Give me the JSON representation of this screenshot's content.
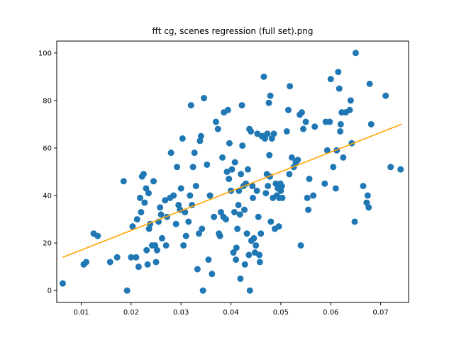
{
  "chart_data": {
    "type": "scatter",
    "title": "fft cg, scenes regression (full set).png",
    "xlabel": "",
    "ylabel": "",
    "xlim": [
      0.0051,
      0.0756
    ],
    "ylim": [
      -5,
      105
    ],
    "xticks": [
      0.01,
      0.02,
      0.03,
      0.04,
      0.05,
      0.06,
      0.07
    ],
    "xtick_labels": [
      "0.01",
      "0.02",
      "0.03",
      "0.04",
      "0.05",
      "0.06",
      "0.07"
    ],
    "yticks": [
      0,
      20,
      40,
      60,
      80,
      100
    ],
    "ytick_labels": [
      "0",
      "20",
      "40",
      "60",
      "80",
      "100"
    ],
    "grid": false,
    "point_color": "#1f77b4",
    "line_color": "#ffa500",
    "regression_line": {
      "x": [
        0.0063,
        0.0742
      ],
      "y": [
        14,
        70
      ]
    },
    "points": [
      [
        0.0063,
        3
      ],
      [
        0.0105,
        11
      ],
      [
        0.011,
        12
      ],
      [
        0.0125,
        24
      ],
      [
        0.0133,
        23
      ],
      [
        0.0158,
        12
      ],
      [
        0.0172,
        14
      ],
      [
        0.0185,
        46
      ],
      [
        0.0192,
        0
      ],
      [
        0.02,
        14
      ],
      [
        0.0203,
        27
      ],
      [
        0.021,
        14
      ],
      [
        0.0212,
        30
      ],
      [
        0.0215,
        10
      ],
      [
        0.0218,
        39
      ],
      [
        0.0222,
        48
      ],
      [
        0.0225,
        49
      ],
      [
        0.0227,
        37
      ],
      [
        0.022,
        33
      ],
      [
        0.023,
        43
      ],
      [
        0.0231,
        17
      ],
      [
        0.0233,
        11
      ],
      [
        0.0235,
        41
      ],
      [
        0.0238,
        28
      ],
      [
        0.0242,
        19
      ],
      [
        0.0245,
        46
      ],
      [
        0.0236,
        26
      ],
      [
        0.0248,
        19
      ],
      [
        0.025,
        12
      ],
      [
        0.0252,
        17
      ],
      [
        0.0255,
        29
      ],
      [
        0.0258,
        35
      ],
      [
        0.026,
        32
      ],
      [
        0.0262,
        22
      ],
      [
        0.0268,
        38
      ],
      [
        0.027,
        19
      ],
      [
        0.0272,
        31
      ],
      [
        0.0278,
        39
      ],
      [
        0.028,
        58
      ],
      [
        0.0285,
        40
      ],
      [
        0.029,
        28
      ],
      [
        0.0292,
        52
      ],
      [
        0.0295,
        36
      ],
      [
        0.0298,
        34
      ],
      [
        0.03,
        43
      ],
      [
        0.0303,
        64
      ],
      [
        0.0305,
        19
      ],
      [
        0.0308,
        33
      ],
      [
        0.031,
        23
      ],
      [
        0.0315,
        29
      ],
      [
        0.0318,
        40
      ],
      [
        0.032,
        78
      ],
      [
        0.0322,
        36
      ],
      [
        0.0324,
        52
      ],
      [
        0.0327,
        58
      ],
      [
        0.033,
        44
      ],
      [
        0.0333,
        9
      ],
      [
        0.0336,
        24
      ],
      [
        0.0338,
        63
      ],
      [
        0.034,
        65
      ],
      [
        0.0342,
        26
      ],
      [
        0.0344,
        0
      ],
      [
        0.0346,
        81
      ],
      [
        0.0352,
        53
      ],
      [
        0.0355,
        13
      ],
      [
        0.0358,
        40
      ],
      [
        0.0362,
        7
      ],
      [
        0.0366,
        31
      ],
      [
        0.037,
        71
      ],
      [
        0.0374,
        68
      ],
      [
        0.0376,
        24
      ],
      [
        0.0378,
        23
      ],
      [
        0.038,
        33
      ],
      [
        0.0383,
        56
      ],
      [
        0.0385,
        31
      ],
      [
        0.0386,
        75
      ],
      [
        0.039,
        30
      ],
      [
        0.0392,
        50
      ],
      [
        0.0394,
        76
      ],
      [
        0.0396,
        47
      ],
      [
        0.0397,
        62
      ],
      [
        0.04,
        42
      ],
      [
        0.0402,
        51
      ],
      [
        0.0405,
        16
      ],
      [
        0.0407,
        33
      ],
      [
        0.0408,
        54
      ],
      [
        0.041,
        13
      ],
      [
        0.0411,
        18
      ],
      [
        0.0413,
        26
      ],
      [
        0.0415,
        36
      ],
      [
        0.0416,
        42
      ],
      [
        0.0418,
        32
      ],
      [
        0.0419,
        5
      ],
      [
        0.042,
        49
      ],
      [
        0.0422,
        78
      ],
      [
        0.0423,
        61
      ],
      [
        0.0425,
        44
      ],
      [
        0.0427,
        34
      ],
      [
        0.0428,
        11
      ],
      [
        0.043,
        45
      ],
      [
        0.0432,
        24
      ],
      [
        0.0434,
        51
      ],
      [
        0.0436,
        15
      ],
      [
        0.0437,
        68
      ],
      [
        0.0438,
        0
      ],
      [
        0.044,
        67
      ],
      [
        0.0441,
        21
      ],
      [
        0.0443,
        44
      ],
      [
        0.0444,
        39
      ],
      [
        0.0446,
        22
      ],
      [
        0.0448,
        16
      ],
      [
        0.045,
        19
      ],
      [
        0.0452,
        42
      ],
      [
        0.0453,
        66
      ],
      [
        0.0455,
        31
      ],
      [
        0.0457,
        15
      ],
      [
        0.0458,
        12
      ],
      [
        0.046,
        24
      ],
      [
        0.0462,
        65
      ],
      [
        0.0464,
        65
      ],
      [
        0.0466,
        90
      ],
      [
        0.0468,
        64
      ],
      [
        0.047,
        41
      ],
      [
        0.0472,
        49
      ],
      [
        0.0473,
        66
      ],
      [
        0.0474,
        44
      ],
      [
        0.0476,
        79
      ],
      [
        0.0477,
        57
      ],
      [
        0.0478,
        48
      ],
      [
        0.0479,
        82
      ],
      [
        0.048,
        29
      ],
      [
        0.0482,
        64
      ],
      [
        0.0484,
        39
      ],
      [
        0.0486,
        66
      ],
      [
        0.0488,
        26
      ],
      [
        0.049,
        45
      ],
      [
        0.0492,
        40
      ],
      [
        0.0494,
        43
      ],
      [
        0.0495,
        44
      ],
      [
        0.0496,
        27
      ],
      [
        0.0497,
        39
      ],
      [
        0.0499,
        45
      ],
      [
        0.05,
        42
      ],
      [
        0.0502,
        44
      ],
      [
        0.0503,
        39
      ],
      [
        0.0512,
        67
      ],
      [
        0.0515,
        76
      ],
      [
        0.0517,
        49
      ],
      [
        0.0518,
        86
      ],
      [
        0.0522,
        56
      ],
      [
        0.0526,
        52
      ],
      [
        0.053,
        54
      ],
      [
        0.0534,
        55
      ],
      [
        0.0538,
        74
      ],
      [
        0.054,
        19
      ],
      [
        0.0542,
        75
      ],
      [
        0.0545,
        68
      ],
      [
        0.055,
        71
      ],
      [
        0.0553,
        39
      ],
      [
        0.0555,
        34
      ],
      [
        0.0557,
        47
      ],
      [
        0.0565,
        40
      ],
      [
        0.0568,
        69
      ],
      [
        0.0588,
        45
      ],
      [
        0.059,
        71
      ],
      [
        0.0593,
        59
      ],
      [
        0.0598,
        71
      ],
      [
        0.06,
        89
      ],
      [
        0.0605,
        52
      ],
      [
        0.061,
        43
      ],
      [
        0.0612,
        59
      ],
      [
        0.0615,
        92
      ],
      [
        0.0617,
        85
      ],
      [
        0.0619,
        67
      ],
      [
        0.062,
        70
      ],
      [
        0.0622,
        75
      ],
      [
        0.0625,
        56
      ],
      [
        0.063,
        75
      ],
      [
        0.0638,
        76
      ],
      [
        0.064,
        80
      ],
      [
        0.0642,
        62
      ],
      [
        0.0648,
        29
      ],
      [
        0.065,
        100
      ],
      [
        0.0665,
        44
      ],
      [
        0.0672,
        37
      ],
      [
        0.0674,
        40
      ],
      [
        0.0676,
        35
      ],
      [
        0.0678,
        87
      ],
      [
        0.0681,
        70
      ],
      [
        0.071,
        82
      ],
      [
        0.072,
        52
      ],
      [
        0.074,
        51
      ]
    ]
  }
}
